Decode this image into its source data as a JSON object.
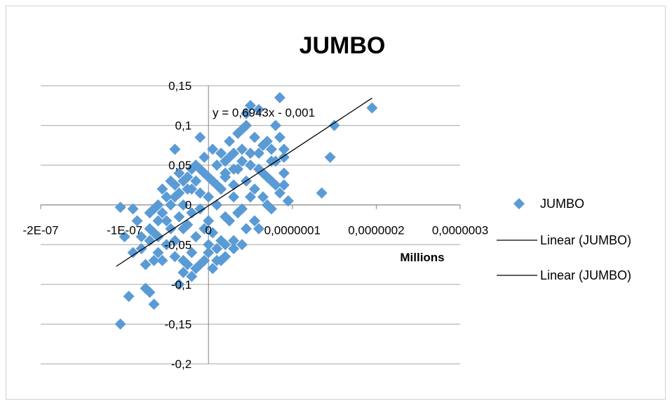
{
  "chart_data": {
    "type": "scatter",
    "title": "JUMBO",
    "xlabel": "Millions",
    "ylabel": "",
    "xlim": [
      -2e-07,
      3e-07
    ],
    "ylim": [
      -0.2,
      0.15
    ],
    "x_ticks": [
      "-2E-07",
      "-1E-07",
      "0",
      "0,0000001",
      "0,0000002",
      "0,0000003"
    ],
    "y_ticks": [
      "0,15",
      "0,1",
      "0,05",
      "0",
      "-0,05",
      "-0,1",
      "-0,15",
      "-0,2"
    ],
    "grid": true,
    "legend_position": "right",
    "colors": {
      "points": "#5B9BD5",
      "trendline": "#000000"
    },
    "trendline": {
      "slope": 0.6943,
      "intercept": -0.001,
      "equation": "y = 0,6943x - 0,001"
    },
    "legend": [
      "JUMBO",
      "Linear (JUMBO)",
      "Linear (JUMBO)"
    ],
    "series": [
      {
        "name": "JUMBO",
        "points": [
          [
            -1.05e-07,
            -0.003
          ],
          [
            -1e-07,
            -0.04
          ],
          [
            -9e-08,
            -0.005
          ],
          [
            -8.5e-08,
            -0.02
          ],
          [
            -8e-08,
            -0.055
          ],
          [
            -7.5e-08,
            -0.075
          ],
          [
            -7e-08,
            -0.01
          ],
          [
            -6.5e-08,
            -0.035
          ],
          [
            -6e-08,
            -0.06
          ],
          [
            -5.5e-08,
            -0.07
          ],
          [
            -5e-08,
            -0.02
          ],
          [
            -4.5e-08,
            0.0
          ],
          [
            -4e-08,
            -0.045
          ],
          [
            -3.5e-08,
            0.015
          ],
          [
            -3e-08,
            -0.03
          ],
          [
            -2.5e-08,
            0.02
          ],
          [
            -2e-08,
            -0.01
          ],
          [
            -1.5e-08,
            0.03
          ],
          [
            -1e-08,
            -0.005
          ],
          [
            -5e-09,
            0.04
          ],
          [
            0.0,
            0.01
          ],
          [
            5e-09,
            0.03
          ],
          [
            1e-08,
            0.05
          ],
          [
            1.5e-08,
            0.02
          ],
          [
            2e-08,
            0.04
          ],
          [
            2.5e-08,
            0.06
          ],
          [
            3e-08,
            0.01
          ],
          [
            3.5e-08,
            0.045
          ],
          [
            4e-08,
            0.07
          ],
          [
            4.5e-08,
            0.03
          ],
          [
            5e-08,
            0.05
          ],
          [
            5.5e-08,
            0.02
          ],
          [
            6e-08,
            0.065
          ],
          [
            6.5e-08,
            0.04
          ],
          [
            7e-08,
            0.08
          ],
          [
            7.5e-08,
            0.03
          ],
          [
            8e-08,
            0.055
          ],
          [
            8.5e-08,
            0.015
          ],
          [
            9e-08,
            0.06
          ],
          [
            9.5e-08,
            0.005
          ],
          [
            -4e-08,
            0.01
          ],
          [
            -3e-08,
            0.0
          ],
          [
            -2e-08,
            0.02
          ],
          [
            -1e-08,
            0.015
          ],
          [
            0.0,
            -0.02
          ],
          [
            1e-08,
            0.0
          ],
          [
            2e-08,
            -0.015
          ],
          [
            3e-08,
            0.025
          ],
          [
            4e-08,
            -0.005
          ],
          [
            5e-08,
            0.01
          ],
          [
            -3.5e-08,
            -0.015
          ],
          [
            -2.5e-08,
            -0.025
          ],
          [
            -1.5e-08,
            -0.04
          ],
          [
            -5e-09,
            -0.03
          ],
          [
            5e-09,
            -0.035
          ],
          [
            1.5e-08,
            -0.045
          ],
          [
            2.5e-08,
            -0.02
          ],
          [
            3.5e-08,
            -0.01
          ],
          [
            4.5e-08,
            -0.03
          ],
          [
            5.5e-08,
            -0.02
          ],
          [
            -6e-08,
            -0.02
          ],
          [
            -5e-08,
            -0.05
          ],
          [
            -4e-08,
            -0.065
          ],
          [
            -3e-08,
            -0.07
          ],
          [
            -2e-08,
            -0.06
          ],
          [
            -1e-08,
            -0.075
          ],
          [
            0.0,
            -0.06
          ],
          [
            1e-08,
            -0.07
          ],
          [
            2e-08,
            -0.05
          ],
          [
            3e-08,
            -0.045
          ],
          [
            -7e-08,
            -0.045
          ],
          [
            -6.5e-08,
            -0.005
          ],
          [
            -5.5e-08,
            0.02
          ],
          [
            -4.5e-08,
            0.03
          ],
          [
            -3.5e-08,
            0.04
          ],
          [
            -2.5e-08,
            0.035
          ],
          [
            -1.5e-08,
            0.05
          ],
          [
            -5e-09,
            0.06
          ],
          [
            5e-09,
            0.07
          ],
          [
            1.5e-08,
            0.065
          ],
          [
            2.5e-08,
            0.08
          ],
          [
            3.5e-08,
            0.09
          ],
          [
            4.5e-08,
            0.1
          ],
          [
            5.5e-08,
            0.085
          ],
          [
            6.5e-08,
            0.075
          ],
          [
            7.5e-08,
            0.07
          ],
          [
            8.5e-08,
            0.085
          ],
          [
            1e-08,
            0.025
          ],
          [
            2e-08,
            0.035
          ],
          [
            3e-08,
            0.045
          ],
          [
            4e-08,
            0.055
          ],
          [
            5e-08,
            0.065
          ],
          [
            6e-08,
            0.045
          ],
          [
            7e-08,
            0.035
          ],
          [
            8e-08,
            0.025
          ],
          [
            9e-08,
            0.04
          ],
          [
            6.5e-08,
            0.01
          ],
          [
            7.5e-08,
            -0.005
          ],
          [
            -1e-08,
            0.045
          ],
          [
            0.0,
            0.035
          ],
          [
            -2e-08,
            0.045
          ],
          [
            -3e-08,
            0.03
          ],
          [
            -4e-08,
            0.025
          ],
          [
            -5e-08,
            0.01
          ],
          [
            -6e-08,
            0.0
          ],
          [
            -7e-08,
            -0.03
          ],
          [
            -8e-08,
            -0.04
          ],
          [
            -9e-08,
            -0.06
          ],
          [
            2e-08,
            0.055
          ],
          [
            3e-08,
            0.065
          ],
          [
            -4e-08,
            0.07
          ],
          [
            -1e-08,
            0.085
          ],
          [
            4e-08,
            0.095
          ],
          [
            5e-08,
            0.125
          ],
          [
            6e-08,
            0.12
          ],
          [
            4.5e-08,
            0.115
          ],
          [
            8.5e-08,
            0.135
          ],
          [
            8e-08,
            0.1
          ],
          [
            9e-08,
            0.07
          ],
          [
            7.5e-08,
            0.055
          ],
          [
            9e-08,
            0.025
          ],
          [
            9.5e-08,
            0.005
          ],
          [
            1.35e-07,
            0.015
          ],
          [
            1.45e-07,
            0.06
          ],
          [
            1.5e-07,
            0.1
          ],
          [
            1.95e-07,
            0.122
          ],
          [
            -1.05e-07,
            -0.15
          ],
          [
            -9.5e-08,
            -0.115
          ],
          [
            -7.5e-08,
            -0.105
          ],
          [
            -7e-08,
            -0.11
          ],
          [
            -6.5e-08,
            -0.125
          ],
          [
            -3.5e-08,
            -0.1
          ],
          [
            -3e-08,
            -0.085
          ],
          [
            -2e-08,
            -0.09
          ],
          [
            -1.5e-08,
            -0.08
          ],
          [
            -2.5e-08,
            -0.075
          ],
          [
            0.0,
            -0.05
          ],
          [
            1e-08,
            -0.055
          ],
          [
            2e-08,
            -0.065
          ],
          [
            3e-08,
            -0.055
          ],
          [
            4e-08,
            -0.05
          ],
          [
            -5e-09,
            -0.07
          ],
          [
            5e-09,
            -0.08
          ],
          [
            1.5e-08,
            -0.07
          ],
          [
            -6.5e-08,
            -0.07
          ],
          [
            -6e-08,
            -0.04
          ],
          [
            -4.5e-08,
            -0.03
          ],
          [
            -5.5e-08,
            -0.01
          ],
          [
            6e-08,
            -0.03
          ],
          [
            7e-08,
            0.0
          ]
        ]
      }
    ]
  }
}
